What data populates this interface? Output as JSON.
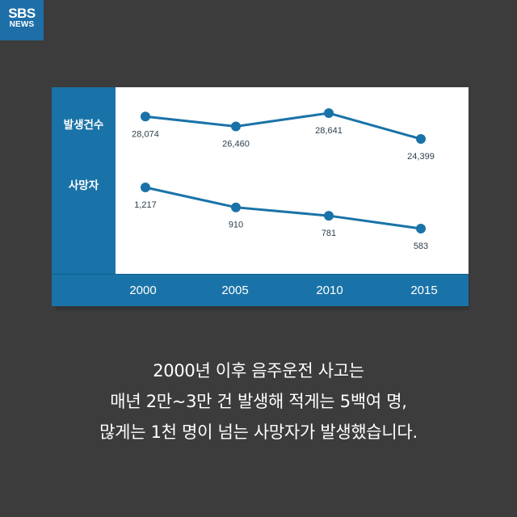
{
  "brand": {
    "name": "SBS",
    "sub": "NEWS"
  },
  "chart_data": {
    "type": "line",
    "categories": [
      "2000",
      "2005",
      "2010",
      "2015"
    ],
    "series": [
      {
        "name": "발생건수",
        "values": [
          28074,
          26460,
          28641,
          24399
        ],
        "labels": [
          "28,074",
          "26,460",
          "28,641",
          "24,399"
        ]
      },
      {
        "name": "사망자",
        "values": [
          1217,
          910,
          781,
          583
        ],
        "labels": [
          "1,217",
          "910",
          "781",
          "583"
        ]
      }
    ],
    "line_color": "#1a73a8",
    "grid": false
  },
  "caption": {
    "lines": [
      "2000년 이후 음주운전 사고는",
      "매년 2만~3만 건 발생해 적게는 5백여 명,",
      "많게는 1천 명이 넘는 사망자가 발생했습니다."
    ]
  }
}
